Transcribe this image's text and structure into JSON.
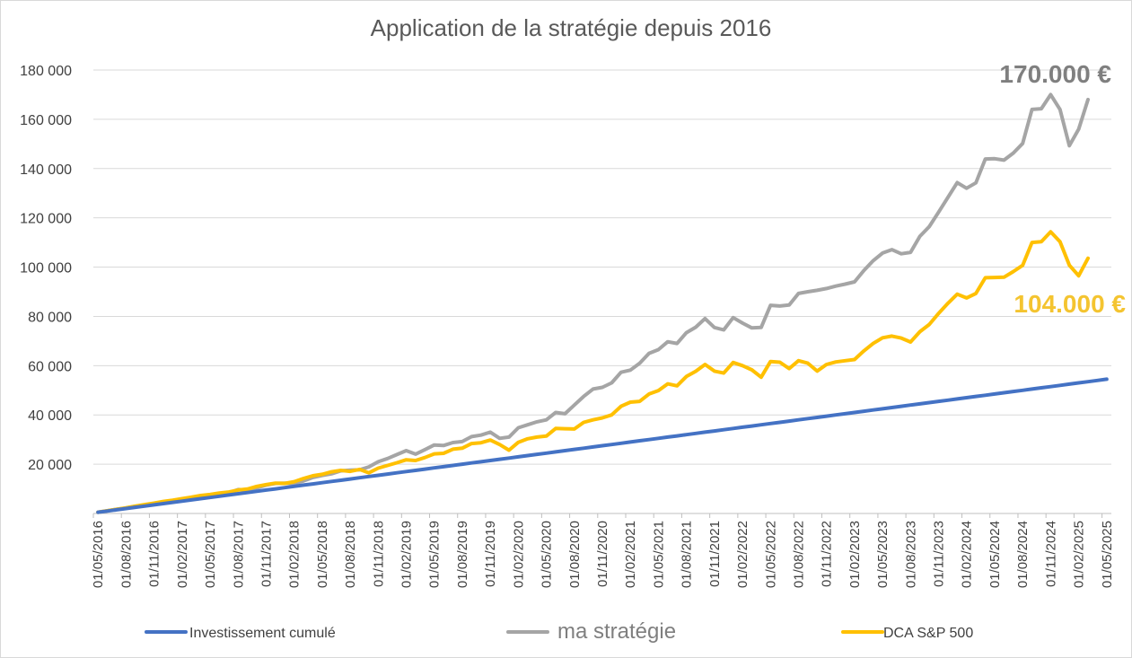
{
  "chart_data": {
    "type": "line",
    "title": "Application de la stratégie depuis 2016",
    "xlabel": "",
    "ylabel": "",
    "ylim": [
      0,
      180000
    ],
    "yticks": [
      20000,
      40000,
      60000,
      80000,
      100000,
      120000,
      140000,
      160000,
      180000
    ],
    "ytick_labels": [
      "20 000",
      "40 000",
      "60 000",
      "80 000",
      "100 000",
      "120 000",
      "140 000",
      "160 000",
      "180 000"
    ],
    "xtick_labels": [
      "01/05/2016",
      "01/08/2016",
      "01/11/2016",
      "01/02/2017",
      "01/05/2017",
      "01/08/2017",
      "01/11/2017",
      "01/02/2018",
      "01/05/2018",
      "01/08/2018",
      "01/11/2018",
      "01/02/2019",
      "01/05/2019",
      "01/08/2019",
      "01/11/2019",
      "01/02/2020",
      "01/05/2020",
      "01/08/2020",
      "01/11/2020",
      "01/02/2021",
      "01/05/2021",
      "01/08/2021",
      "01/11/2021",
      "01/02/2022",
      "01/05/2022",
      "01/08/2022",
      "01/11/2022",
      "01/02/2023",
      "01/05/2023",
      "01/08/2023",
      "01/11/2023",
      "01/02/2024",
      "01/05/2024",
      "01/08/2024",
      "01/11/2024",
      "01/02/2025",
      "01/05/2025"
    ],
    "grid": true,
    "legend_position": "bottom",
    "series": [
      {
        "name": "Investissement cumulé",
        "color": "#4472c4",
        "values": [
          500,
          1000,
          1500,
          2000,
          2500,
          3000,
          3500,
          4000,
          4500,
          5000,
          5500,
          6000,
          6500,
          7000,
          7500,
          8000,
          8500,
          9000,
          9500,
          10000,
          10500,
          11000,
          11500,
          12000,
          12500,
          13000,
          13500,
          14000,
          14500,
          15000,
          15500,
          16000,
          16500,
          17000,
          17500,
          18000,
          18500,
          19000,
          19500,
          20000,
          20500,
          21000,
          21500,
          22000,
          22500,
          23000,
          23500,
          24000,
          24500,
          25000,
          25500,
          26000,
          26500,
          27000,
          27500,
          28000,
          28500,
          29000,
          29500,
          30000,
          30500,
          31000,
          31500,
          32000,
          32500,
          33000,
          33500,
          34000,
          34500,
          35000,
          35500,
          36000,
          36500,
          37000,
          37500,
          38000,
          38500,
          39000,
          39500,
          40000,
          40500,
          41000,
          41500,
          42000,
          42500,
          43000,
          43500,
          44000,
          44500,
          45000,
          45500,
          46000,
          46500,
          47000,
          47500,
          48000,
          48500,
          49000,
          49500,
          50000,
          50500,
          51000,
          51500,
          52000,
          52500,
          53000,
          53500,
          54000,
          54500
        ]
      },
      {
        "name": "ma stratégie",
        "color": "#a5a5a5",
        "values": [
          500,
          1100,
          1700,
          2200,
          2900,
          3400,
          3900,
          4500,
          5000,
          5600,
          6100,
          6700,
          7200,
          7800,
          8400,
          9700,
          9600,
          10400,
          11500,
          12200,
          12300,
          12200,
          13200,
          14600,
          15400,
          16100,
          17300,
          17600,
          17700,
          18900,
          21000,
          22300,
          23900,
          25500,
          24100,
          25900,
          27800,
          27600,
          28800,
          29200,
          31200,
          31800,
          33000,
          30500,
          31000,
          34800,
          36000,
          37200,
          38000,
          41000,
          40500,
          44000,
          47500,
          50500,
          51200,
          53000,
          57300,
          58200,
          61000,
          65000,
          66500,
          69700,
          69000,
          73400,
          75600,
          79100,
          75500,
          74500,
          79500,
          77300,
          75300,
          75500,
          84500,
          84200,
          84600,
          89300,
          90000,
          90600,
          91300,
          92300,
          93100,
          94000,
          98600,
          102600,
          105700,
          107100,
          105400,
          106000,
          112500,
          116400,
          122300,
          128300,
          134300,
          132000,
          134200,
          143900,
          144000,
          143400,
          146300,
          150200,
          164000,
          164300,
          170000,
          164000,
          149300,
          156000,
          168000
        ]
      },
      {
        "name": "DCA S&P 500",
        "color": "#ffc000",
        "values": [
          500,
          1100,
          1700,
          2300,
          3000,
          3600,
          4200,
          4900,
          5400,
          6000,
          6600,
          7300,
          7700,
          8300,
          8700,
          9500,
          9900,
          11000,
          11700,
          12300,
          12200,
          12900,
          14200,
          15300,
          15900,
          16900,
          17500,
          17100,
          17900,
          16500,
          18400,
          19500,
          20600,
          21800,
          21500,
          22700,
          24200,
          24400,
          26100,
          26500,
          28400,
          28700,
          29800,
          28000,
          25700,
          28900,
          30300,
          31000,
          31400,
          34500,
          34400,
          34300,
          37000,
          38000,
          38800,
          40000,
          43500,
          45200,
          45500,
          48500,
          49900,
          52600,
          51800,
          55600,
          57700,
          60500,
          57800,
          57000,
          61300,
          60000,
          58300,
          55300,
          61700,
          61400,
          58800,
          62000,
          61000,
          57800,
          60500,
          61500,
          62000,
          62500,
          66000,
          69000,
          71300,
          72000,
          71200,
          69600,
          73800,
          76700,
          81200,
          85300,
          89000,
          87500,
          89300,
          95700,
          95800,
          95900,
          98200,
          100700,
          110000,
          110300,
          114300,
          110300,
          100800,
          96500,
          103600
        ]
      }
    ],
    "annotations": [
      {
        "text": "170.000 €",
        "series": "ma stratégie",
        "color": "#7f7f7f"
      },
      {
        "text": "104.000 €",
        "series": "DCA S&P 500",
        "color": "#f4c430"
      }
    ]
  }
}
